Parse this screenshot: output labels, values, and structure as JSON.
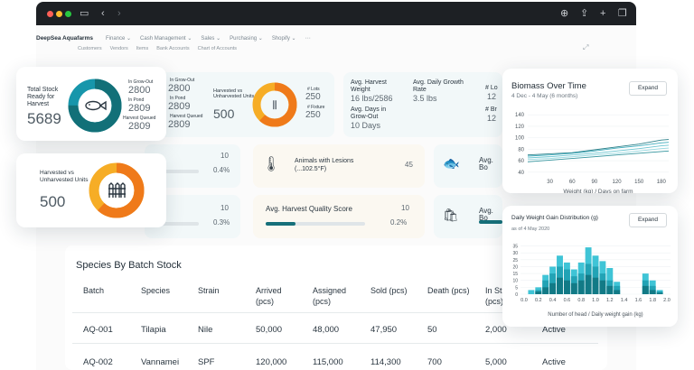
{
  "browser": {
    "icons": [
      "sidebar-icon",
      "back-icon",
      "forward-icon",
      "download-icon",
      "share-icon",
      "new-tab-icon",
      "tabs-icon"
    ]
  },
  "nav": {
    "brand": "DeepSea Aquafarms",
    "items": [
      "Finance ⌄",
      "Cash Management ⌄",
      "Sales ⌄",
      "Purchasing ⌄",
      "Shopify ⌄",
      "⋯"
    ],
    "sub": [
      "Customers",
      "Vendors",
      "Items",
      "Bank Accounts",
      "Chart of Accounts"
    ]
  },
  "total_stock": {
    "label": "Total Stock Ready for Harvest",
    "value": "5689",
    "grow_out_label": "In Grow-Out",
    "grow_out": "2800",
    "pond_label": "In Pond",
    "pond": "2809",
    "queued_label": "Harvest Queued",
    "queued": "2809",
    "ring": {
      "teal": 0.75,
      "blue": 0.25,
      "colors": [
        "#127078",
        "#1796ab"
      ]
    }
  },
  "col_card": {
    "grow_out_label": "In Grow-Out",
    "grow_out": "2800",
    "pond_label": "In Pond",
    "pond": "2809",
    "queued_label": "Harvest Queued",
    "queued": "2809"
  },
  "harvested_bg": {
    "label": "Harvested vs Unharvested Units",
    "value": "500",
    "lot_label": "# Lots",
    "lot": "250",
    "fixture_label": "# Fixture",
    "fixture": "250",
    "ring": {
      "orange": 0.62,
      "yellow": 0.38,
      "colors": [
        "#ef7a1a",
        "#f6ad26"
      ]
    }
  },
  "avg_metrics": {
    "harvest_weight_label": "Avg. Harvest Weight",
    "harvest_weight": "16 lbs/2586",
    "growth_rate_label": "Avg. Daily Growth Rate",
    "growth_rate": "3.5 lbs",
    "grow_out_days_label": "Avg. Days in Grow-Out",
    "grow_out_days": "10 Days",
    "edge_labels": [
      "# Lo",
      "# Br"
    ],
    "edge_values": [
      "12",
      "12"
    ]
  },
  "row2": {
    "left_value": "10",
    "left_pct": "0.4%",
    "left_fill": 0.4,
    "lesions_label": "Animals with Lesions (...102.5°F)",
    "lesions_value": "45",
    "avg_b1": "Avg. Bo"
  },
  "harvested_fg": {
    "label": "Harvested vs Unharvested Units",
    "value": "500",
    "ring": {
      "orange": 0.62,
      "yellow": 0.38
    }
  },
  "row3": {
    "left_value": "10",
    "left_pct": "0.3%",
    "left_fill": 0.3,
    "quality_label": "Avg. Harvest Quality Score",
    "quality_value": "10",
    "quality_pct": "0.2%",
    "quality_fill": 0.2,
    "avg_b2": "Avg. Bo"
  },
  "table": {
    "title": "Species By Batch Stock",
    "headers": [
      "Batch",
      "Species",
      "Strain",
      "Arrived\n(pcs)",
      "Assigned\n(pcs)",
      "Sold (pcs)",
      "Death (pcs)",
      "In St\n(pcs)",
      "Status"
    ],
    "rows": [
      [
        "AQ-001",
        "Tilapia",
        "Nile",
        "50,000",
        "48,000",
        "47,950",
        "50",
        "2,000",
        "Active"
      ],
      [
        "AQ-002",
        "Vannamei",
        "SPF",
        "120,000",
        "115,000",
        "114,300",
        "700",
        "5,000",
        "Active"
      ]
    ]
  },
  "biomass": {
    "title": "Biomass Over Time",
    "subtitle": "4 Dec - 4 May (6 months)",
    "expand": "Expand",
    "chart_data": {
      "type": "line",
      "xlabel": "Weight (kg) / Days on farm",
      "ylabel": "",
      "x_ticks": [
        30,
        60,
        90,
        120,
        150,
        180
      ],
      "y_ticks": [
        40,
        60,
        80,
        100,
        120,
        140
      ],
      "xlim": [
        0,
        190
      ],
      "ylim": [
        35,
        145
      ],
      "series": [
        {
          "x": [
            0,
            30,
            60,
            90,
            120,
            150,
            180,
            190
          ],
          "values": [
            70,
            72,
            74,
            79,
            84,
            89,
            96,
            97
          ]
        },
        {
          "x": [
            0,
            30,
            60,
            90,
            120,
            150,
            180,
            190
          ],
          "values": [
            68,
            70,
            73,
            77,
            82,
            86,
            91,
            92
          ]
        },
        {
          "x": [
            0,
            30,
            60,
            90,
            120,
            150,
            180,
            190
          ],
          "values": [
            65,
            67,
            70,
            73,
            77,
            81,
            86,
            87
          ]
        },
        {
          "x": [
            0,
            30,
            60,
            90,
            120,
            150,
            180,
            190
          ],
          "values": [
            62,
            64,
            67,
            70,
            73,
            77,
            81,
            82
          ]
        },
        {
          "x": [
            0,
            30,
            60,
            90,
            120,
            150,
            180,
            190
          ],
          "values": [
            58,
            61,
            64,
            67,
            70,
            73,
            76,
            77
          ]
        }
      ],
      "colors": [
        "#15727c",
        "#2aa3b5",
        "#5cbfcc",
        "#8ad3dc",
        "#1f8a94"
      ]
    }
  },
  "weight_gain": {
    "title": "Daily Weight Gain Distribution (g)",
    "subtitle": "as of 4 May 2020",
    "expand": "Expand",
    "chart_data": {
      "type": "bar",
      "xlabel": "Number of head / Daily weight gain (kg)",
      "ylabel": "",
      "categories": [
        "0.0",
        "0.1",
        "0.2",
        "0.3",
        "0.4",
        "0.5",
        "0.6",
        "0.7",
        "0.8",
        "0.9",
        "1.0",
        "1.1",
        "1.2",
        "1.3",
        "1.4",
        "1.5",
        "1.6",
        "1.7",
        "1.8",
        "1.9",
        "2.0"
      ],
      "x_ticks": [
        "0.0",
        "0.2",
        "0.4",
        "0.6",
        "0.8",
        "1.0",
        "1.2",
        "1.4",
        "1.6",
        "1.8",
        "2.0"
      ],
      "y_ticks": [
        0,
        5,
        10,
        15,
        20,
        25,
        30,
        35
      ],
      "ylim": [
        0,
        38
      ],
      "series": [
        {
          "values": [
            0,
            3,
            5,
            14,
            20,
            28,
            23,
            18,
            23,
            34,
            28,
            24,
            19,
            9,
            0,
            0,
            0,
            15,
            10,
            3,
            0
          ]
        },
        {
          "values": [
            0,
            0,
            3,
            10,
            15,
            20,
            18,
            13,
            15,
            22,
            20,
            15,
            10,
            6,
            0,
            0,
            0,
            10,
            6,
            2,
            0
          ]
        },
        {
          "values": [
            0,
            0,
            2,
            5,
            8,
            12,
            10,
            8,
            10,
            14,
            12,
            10,
            6,
            3,
            0,
            0,
            0,
            6,
            3,
            1,
            0
          ]
        }
      ],
      "colors": [
        "#3fc4d6",
        "#22a3b5",
        "#127a86"
      ]
    }
  }
}
